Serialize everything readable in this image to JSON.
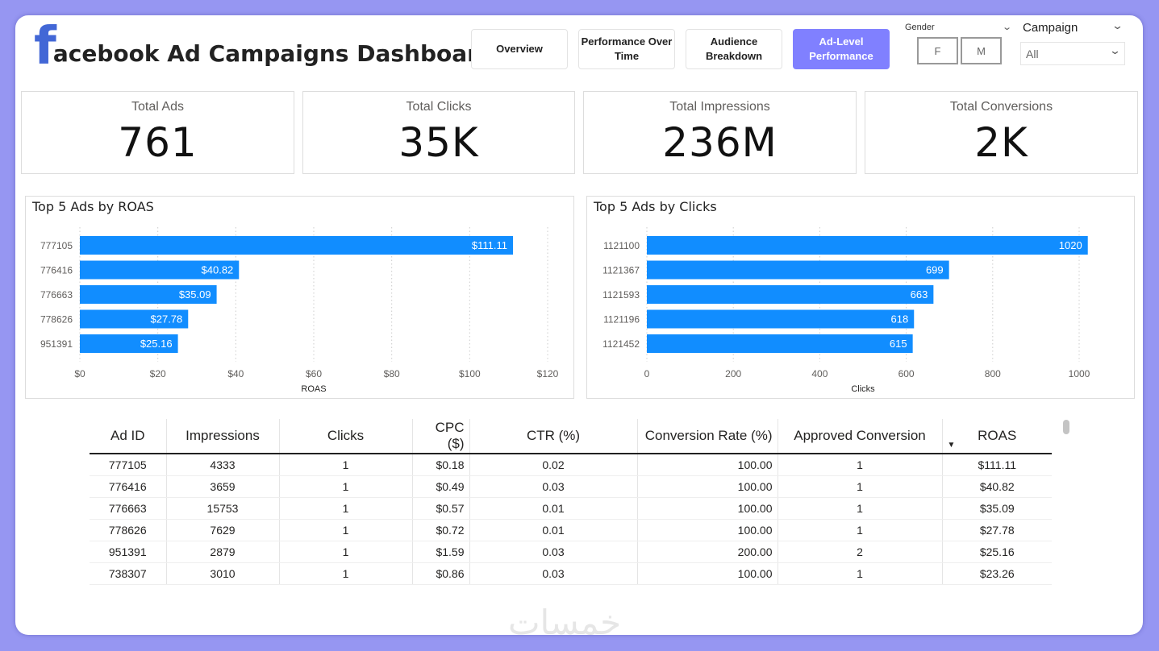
{
  "header": {
    "logo_letter": "f",
    "title": "acebook Ad Campaigns Dashboard"
  },
  "nav": [
    {
      "label": "Overview",
      "active": false
    },
    {
      "label": "Performance Over Time",
      "active": false
    },
    {
      "label": "Audience Breakdown",
      "active": false
    },
    {
      "label": "Ad-Level Performance",
      "active": true
    }
  ],
  "filters": {
    "gender": {
      "label": "Gender",
      "options": [
        "F",
        "M"
      ]
    },
    "campaign": {
      "label": "Campaign",
      "value": "All"
    }
  },
  "kpis": [
    {
      "label": "Total Ads",
      "value": "761"
    },
    {
      "label": "Total Clicks",
      "value": "35K"
    },
    {
      "label": "Total Impressions",
      "value": "236M"
    },
    {
      "label": "Total Conversions",
      "value": "2K"
    }
  ],
  "chart_data": [
    {
      "type": "bar",
      "orientation": "horizontal",
      "title": "Top 5 Ads by ROAS",
      "xlabel": "ROAS",
      "ylabel": "",
      "categories": [
        "777105",
        "776416",
        "776663",
        "778626",
        "951391"
      ],
      "values": [
        111.11,
        40.82,
        35.09,
        27.78,
        25.16
      ],
      "data_labels": [
        "$111.11",
        "$40.82",
        "$35.09",
        "$27.78",
        "$25.16"
      ],
      "xlim": [
        0,
        120
      ],
      "ticks": [
        "$0",
        "$20",
        "$40",
        "$60",
        "$80",
        "$100",
        "$120"
      ],
      "tick_values": [
        0,
        20,
        40,
        60,
        80,
        100,
        120
      ],
      "grid": true,
      "color": "#118dff"
    },
    {
      "type": "bar",
      "orientation": "horizontal",
      "title": "Top 5 Ads by Clicks",
      "xlabel": "Clicks",
      "ylabel": "",
      "categories": [
        "1121100",
        "1121367",
        "1121593",
        "1121196",
        "1121452"
      ],
      "values": [
        1020,
        699,
        663,
        618,
        615
      ],
      "data_labels": [
        "1020",
        "699",
        "663",
        "618",
        "615"
      ],
      "xlim": [
        0,
        1030
      ],
      "ticks": [
        "0",
        "200",
        "400",
        "600",
        "800",
        "1000"
      ],
      "tick_values": [
        0,
        200,
        400,
        600,
        800,
        1000
      ],
      "grid": true,
      "color": "#118dff"
    }
  ],
  "table": {
    "columns": [
      "Ad ID",
      "Impressions",
      "Clicks",
      "CPC ($)",
      "CTR (%)",
      "Conversion Rate (%)",
      "Approved Conversion",
      "ROAS"
    ],
    "sorted_by": "ROAS",
    "sort_direction": "descending",
    "rows": [
      [
        "777105",
        "4333",
        "1",
        "$0.18",
        "0.02",
        "100.00",
        "1",
        "$111.11"
      ],
      [
        "776416",
        "3659",
        "1",
        "$0.49",
        "0.03",
        "100.00",
        "1",
        "$40.82"
      ],
      [
        "776663",
        "15753",
        "1",
        "$0.57",
        "0.01",
        "100.00",
        "1",
        "$35.09"
      ],
      [
        "778626",
        "7629",
        "1",
        "$0.72",
        "0.01",
        "100.00",
        "1",
        "$27.78"
      ],
      [
        "951391",
        "2879",
        "1",
        "$1.59",
        "0.03",
        "200.00",
        "2",
        "$25.16"
      ],
      [
        "738307",
        "3010",
        "1",
        "$0.86",
        "0.03",
        "100.00",
        "1",
        "$23.26"
      ]
    ]
  },
  "watermark": "خمسات",
  "colors": {
    "background": "#9696f2",
    "accent": "#8080ff",
    "bar": "#118dff",
    "logo": "#4267d6"
  }
}
